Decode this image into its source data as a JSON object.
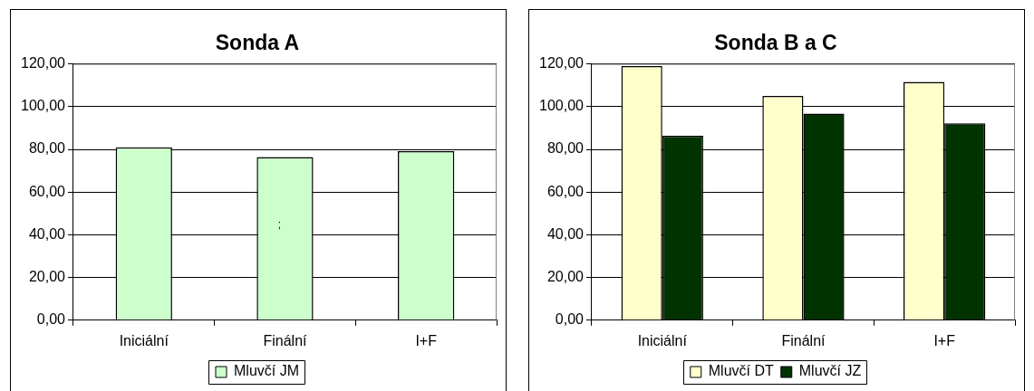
{
  "chart_data": [
    {
      "type": "bar",
      "title": "Sonda A",
      "categories": [
        "Iniciální",
        "Finální",
        "I+F"
      ],
      "series": [
        {
          "name": "Mluvčí JM",
          "color": "#ccffcc",
          "values": [
            81.0,
            76.4,
            79.2
          ]
        }
      ],
      "ylim": [
        0,
        120
      ],
      "yticks": [
        {
          "value": 0,
          "label": "0,00"
        },
        {
          "value": 20,
          "label": "20,00"
        },
        {
          "value": 40,
          "label": "40,00"
        },
        {
          "value": 60,
          "label": "60,00"
        },
        {
          "value": 80,
          "label": "80,00"
        },
        {
          "value": 100,
          "label": "100,00"
        },
        {
          "value": 120,
          "label": "120,00"
        }
      ],
      "grid": "y",
      "legend": "bottom",
      "annotations": [
        ";"
      ]
    },
    {
      "type": "bar",
      "title": "Sonda B a C",
      "categories": [
        "Iniciální",
        "Finální",
        "I+F"
      ],
      "series": [
        {
          "name": "Mluvčí DT",
          "color": "#ffffcc",
          "values": [
            119.0,
            105.0,
            111.6
          ]
        },
        {
          "name": "Mluvčí JZ",
          "color": "#003300",
          "values": [
            86.4,
            96.7,
            92.2
          ]
        }
      ],
      "ylim": [
        0,
        120
      ],
      "yticks": [
        {
          "value": 0,
          "label": "0,00"
        },
        {
          "value": 20,
          "label": "20,00"
        },
        {
          "value": 40,
          "label": "40,00"
        },
        {
          "value": 60,
          "label": "60,00"
        },
        {
          "value": 80,
          "label": "80,00"
        },
        {
          "value": 100,
          "label": "100,00"
        },
        {
          "value": 120,
          "label": "120,00"
        }
      ],
      "grid": "y",
      "legend": "bottom"
    }
  ]
}
